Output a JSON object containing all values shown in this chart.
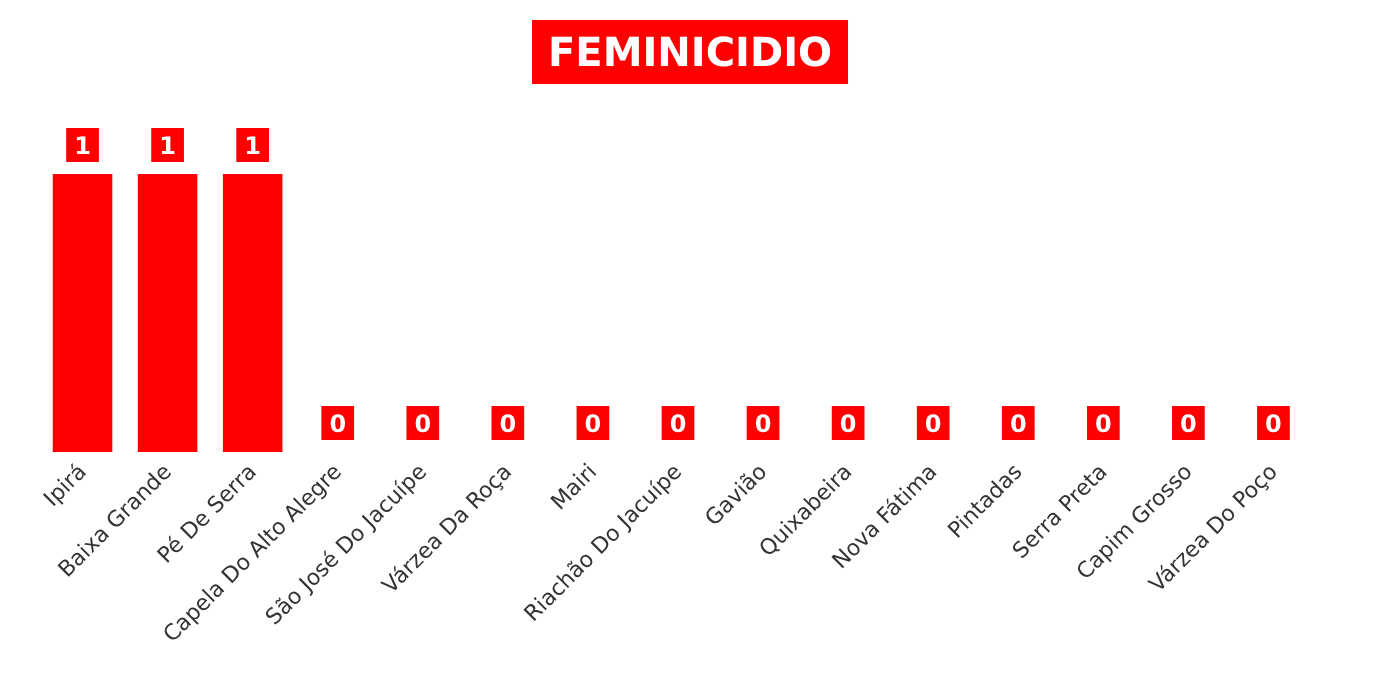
{
  "chart_data": {
    "type": "bar",
    "title": "FEMINICIDIO",
    "categories": [
      "Ipirá",
      "Baixa Grande",
      "Pé De Serra",
      "Capela Do Alto Alegre",
      "São José Do Jacuípe",
      "Várzea Da Roça",
      "Mairi",
      "Riachão Do Jacuípe",
      "Gavião",
      "Quixabeira",
      "Nova Fátima",
      "Pintadas",
      "Serra Preta",
      "Capim Grosso",
      "Várzea Do Poço"
    ],
    "values": [
      1,
      1,
      1,
      0,
      0,
      0,
      0,
      0,
      0,
      0,
      0,
      0,
      0,
      0,
      0
    ],
    "color": "#ff0000",
    "data_labels": true
  }
}
